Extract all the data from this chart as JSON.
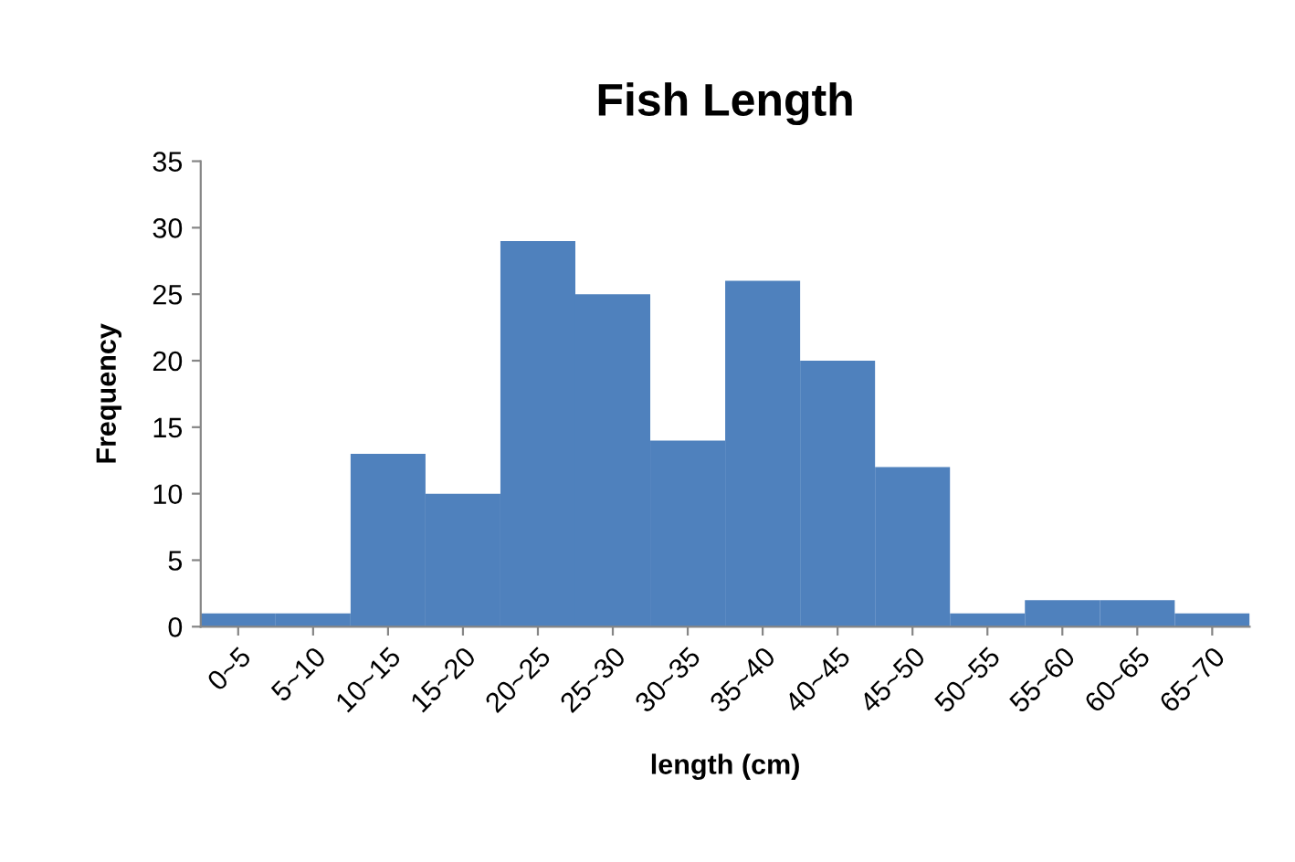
{
  "chart_data": {
    "type": "bar",
    "title": "Fish Length",
    "xlabel": "length (cm)",
    "ylabel": "Frequency",
    "categories": [
      "0~5",
      "5~10",
      "10~15",
      "15~20",
      "20~25",
      "25~30",
      "30~35",
      "35~40",
      "40~45",
      "45~50",
      "50~55",
      "55~60",
      "60~65",
      "65~70"
    ],
    "values": [
      1,
      1,
      13,
      10,
      29,
      25,
      14,
      26,
      20,
      12,
      1,
      2,
      2,
      1
    ],
    "color": "#4f81bd",
    "ylim": [
      0,
      35
    ],
    "yticks": [
      0,
      5,
      10,
      15,
      20,
      25,
      30,
      35
    ],
    "grid": false,
    "legend": false
  }
}
